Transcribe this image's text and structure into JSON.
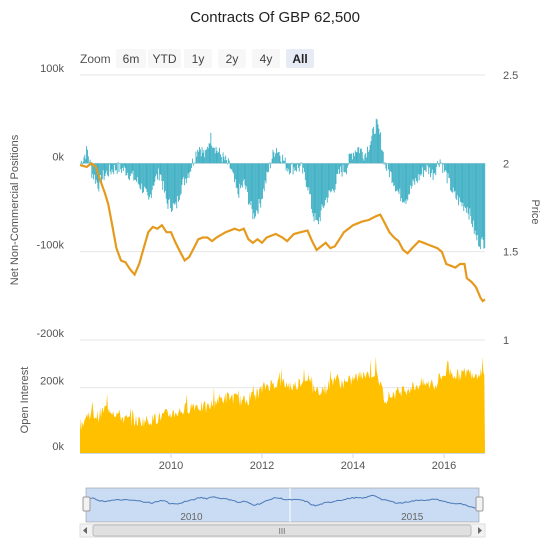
{
  "title": "Contracts Of GBP 62,500",
  "zoom": {
    "label": "Zoom",
    "buttons": [
      "6m",
      "YTD",
      "1y",
      "2y",
      "4y",
      "All"
    ],
    "selected": "All"
  },
  "colors": {
    "positions": "#3fb0c4",
    "price": "#e59a1e",
    "open_interest": "#ffc000",
    "navigator_line": "#4a78b8",
    "navigator_fill": "#c9dcf3",
    "grid": "#e6e6e6",
    "text": "#555555",
    "selected_button": "#e6ebf5"
  },
  "navigator": {
    "x_labels": [
      "2010",
      "2015"
    ],
    "scrollbar_grip": "III"
  },
  "chart_data": [
    {
      "type": "bar",
      "title": "Contracts Of GBP 62,500",
      "ylabel": "Net Non-Commercial Positions",
      "ylim": [
        -200000,
        100000
      ],
      "yticks": [
        100000,
        0,
        -100000,
        -200000
      ],
      "ytick_labels": [
        "100k",
        "0k",
        "-100k",
        "-200k"
      ],
      "xlim": [
        2008.0,
        2016.9
      ],
      "xticks": [
        2010,
        2012,
        2014,
        2016
      ],
      "xtick_labels": [
        "2010",
        "2012",
        "2014",
        "2016"
      ],
      "grid": true,
      "anchors": [
        [
          2008.0,
          0
        ],
        [
          2008.15,
          15000
        ],
        [
          2008.25,
          -10000
        ],
        [
          2008.4,
          -25000
        ],
        [
          2008.5,
          -15000
        ],
        [
          2008.6,
          -10000
        ],
        [
          2008.8,
          -5000
        ],
        [
          2009.0,
          -8000
        ],
        [
          2009.2,
          -18000
        ],
        [
          2009.4,
          -30000
        ],
        [
          2009.5,
          -45000
        ],
        [
          2009.6,
          -22000
        ],
        [
          2009.75,
          -10000
        ],
        [
          2009.9,
          -45000
        ],
        [
          2010.1,
          -50000
        ],
        [
          2010.2,
          -28000
        ],
        [
          2010.4,
          -8000
        ],
        [
          2010.6,
          20000
        ],
        [
          2010.75,
          8000
        ],
        [
          2010.85,
          30000
        ],
        [
          2011.0,
          15000
        ],
        [
          2011.15,
          5000
        ],
        [
          2011.3,
          -5000
        ],
        [
          2011.45,
          -35000
        ],
        [
          2011.6,
          -22000
        ],
        [
          2011.8,
          -60000
        ],
        [
          2011.95,
          -45000
        ],
        [
          2012.1,
          -15000
        ],
        [
          2012.2,
          5000
        ],
        [
          2012.3,
          18000
        ],
        [
          2012.4,
          10000
        ],
        [
          2012.55,
          -5000
        ],
        [
          2012.7,
          -5000
        ],
        [
          2012.85,
          -5000
        ],
        [
          2013.0,
          -25000
        ],
        [
          2013.1,
          -55000
        ],
        [
          2013.2,
          -70000
        ],
        [
          2013.4,
          -40000
        ],
        [
          2013.55,
          -30000
        ],
        [
          2013.7,
          -10000
        ],
        [
          2013.85,
          -5000
        ],
        [
          2013.95,
          10000
        ],
        [
          2014.1,
          18000
        ],
        [
          2014.25,
          10000
        ],
        [
          2014.4,
          28000
        ],
        [
          2014.5,
          45000
        ],
        [
          2014.6,
          28000
        ],
        [
          2014.7,
          -3000
        ],
        [
          2014.85,
          -15000
        ],
        [
          2015.0,
          -35000
        ],
        [
          2015.15,
          -40000
        ],
        [
          2015.3,
          -25000
        ],
        [
          2015.45,
          -15000
        ],
        [
          2015.6,
          -5000
        ],
        [
          2015.75,
          -12000
        ],
        [
          2015.9,
          5000
        ],
        [
          2016.05,
          -15000
        ],
        [
          2016.2,
          -35000
        ],
        [
          2016.35,
          -45000
        ],
        [
          2016.5,
          -50000
        ],
        [
          2016.6,
          -65000
        ],
        [
          2016.7,
          -85000
        ],
        [
          2016.8,
          -90000
        ],
        [
          2016.9,
          -88000
        ]
      ]
    },
    {
      "type": "line",
      "series": [
        {
          "name": "Price",
          "axis": "right",
          "points": [
            [
              2008.0,
              1.99
            ],
            [
              2008.15,
              1.98
            ],
            [
              2008.25,
              2.0
            ],
            [
              2008.35,
              1.98
            ],
            [
              2008.45,
              1.9
            ],
            [
              2008.55,
              1.83
            ],
            [
              2008.62,
              1.77
            ],
            [
              2008.7,
              1.66
            ],
            [
              2008.8,
              1.52
            ],
            [
              2008.9,
              1.45
            ],
            [
              2009.0,
              1.44
            ],
            [
              2009.1,
              1.4
            ],
            [
              2009.2,
              1.37
            ],
            [
              2009.3,
              1.43
            ],
            [
              2009.4,
              1.52
            ],
            [
              2009.5,
              1.61
            ],
            [
              2009.6,
              1.64
            ],
            [
              2009.7,
              1.63
            ],
            [
              2009.8,
              1.65
            ],
            [
              2009.9,
              1.61
            ],
            [
              2010.0,
              1.61
            ],
            [
              2010.1,
              1.55
            ],
            [
              2010.2,
              1.5
            ],
            [
              2010.3,
              1.45
            ],
            [
              2010.4,
              1.47
            ],
            [
              2010.5,
              1.52
            ],
            [
              2010.6,
              1.57
            ],
            [
              2010.7,
              1.58
            ],
            [
              2010.8,
              1.58
            ],
            [
              2010.9,
              1.56
            ],
            [
              2011.0,
              1.58
            ],
            [
              2011.2,
              1.61
            ],
            [
              2011.4,
              1.63
            ],
            [
              2011.5,
              1.62
            ],
            [
              2011.6,
              1.63
            ],
            [
              2011.7,
              1.57
            ],
            [
              2011.8,
              1.55
            ],
            [
              2011.9,
              1.57
            ],
            [
              2012.0,
              1.55
            ],
            [
              2012.1,
              1.58
            ],
            [
              2012.3,
              1.6
            ],
            [
              2012.45,
              1.58
            ],
            [
              2012.55,
              1.56
            ],
            [
              2012.7,
              1.6
            ],
            [
              2012.85,
              1.61
            ],
            [
              2013.0,
              1.62
            ],
            [
              2013.1,
              1.56
            ],
            [
              2013.2,
              1.51
            ],
            [
              2013.3,
              1.53
            ],
            [
              2013.4,
              1.55
            ],
            [
              2013.5,
              1.52
            ],
            [
              2013.6,
              1.53
            ],
            [
              2013.7,
              1.57
            ],
            [
              2013.8,
              1.61
            ],
            [
              2013.9,
              1.63
            ],
            [
              2014.0,
              1.65
            ],
            [
              2014.2,
              1.67
            ],
            [
              2014.35,
              1.68
            ],
            [
              2014.5,
              1.7
            ],
            [
              2014.6,
              1.71
            ],
            [
              2014.7,
              1.66
            ],
            [
              2014.8,
              1.61
            ],
            [
              2014.9,
              1.58
            ],
            [
              2015.0,
              1.56
            ],
            [
              2015.1,
              1.51
            ],
            [
              2015.2,
              1.49
            ],
            [
              2015.3,
              1.52
            ],
            [
              2015.45,
              1.56
            ],
            [
              2015.55,
              1.55
            ],
            [
              2015.65,
              1.54
            ],
            [
              2015.75,
              1.53
            ],
            [
              2015.85,
              1.52
            ],
            [
              2015.95,
              1.5
            ],
            [
              2016.05,
              1.43
            ],
            [
              2016.15,
              1.42
            ],
            [
              2016.25,
              1.41
            ],
            [
              2016.35,
              1.43
            ],
            [
              2016.45,
              1.43
            ],
            [
              2016.5,
              1.35
            ],
            [
              2016.6,
              1.33
            ],
            [
              2016.7,
              1.3
            ],
            [
              2016.75,
              1.27
            ],
            [
              2016.8,
              1.24
            ],
            [
              2016.85,
              1.22
            ],
            [
              2016.9,
              1.23
            ]
          ]
        }
      ],
      "ylabel": "Price",
      "ylim": [
        1.0,
        2.5
      ],
      "yticks": [
        2.5,
        2.0,
        1.5,
        1.0
      ],
      "ytick_labels": [
        "2.5",
        "2",
        "1.5",
        "1"
      ]
    },
    {
      "type": "area",
      "ylabel": "Open Interest",
      "ylim": [
        0,
        300000
      ],
      "yticks": [
        0,
        200000
      ],
      "ytick_labels": [
        "0k",
        "200k"
      ],
      "xlim": [
        2008.0,
        2016.9
      ],
      "anchors": [
        [
          2008.0,
          80000
        ],
        [
          2008.2,
          120000
        ],
        [
          2008.4,
          110000
        ],
        [
          2008.6,
          140000
        ],
        [
          2008.8,
          120000
        ],
        [
          2009.0,
          100000
        ],
        [
          2009.3,
          95000
        ],
        [
          2009.6,
          100000
        ],
        [
          2009.9,
          115000
        ],
        [
          2010.2,
          125000
        ],
        [
          2010.5,
          145000
        ],
        [
          2010.8,
          135000
        ],
        [
          2011.0,
          160000
        ],
        [
          2011.3,
          170000
        ],
        [
          2011.6,
          155000
        ],
        [
          2011.9,
          180000
        ],
        [
          2012.1,
          205000
        ],
        [
          2012.4,
          215000
        ],
        [
          2012.7,
          200000
        ],
        [
          2013.0,
          235000
        ],
        [
          2013.1,
          190000
        ],
        [
          2013.4,
          195000
        ],
        [
          2013.6,
          230000
        ],
        [
          2013.8,
          205000
        ],
        [
          2014.0,
          225000
        ],
        [
          2014.3,
          240000
        ],
        [
          2014.5,
          245000
        ],
        [
          2014.7,
          165000
        ],
        [
          2014.9,
          180000
        ],
        [
          2015.2,
          195000
        ],
        [
          2015.5,
          210000
        ],
        [
          2015.8,
          205000
        ],
        [
          2016.0,
          240000
        ],
        [
          2016.1,
          250000
        ],
        [
          2016.3,
          235000
        ],
        [
          2016.5,
          245000
        ],
        [
          2016.7,
          240000
        ],
        [
          2016.9,
          255000
        ]
      ]
    }
  ]
}
